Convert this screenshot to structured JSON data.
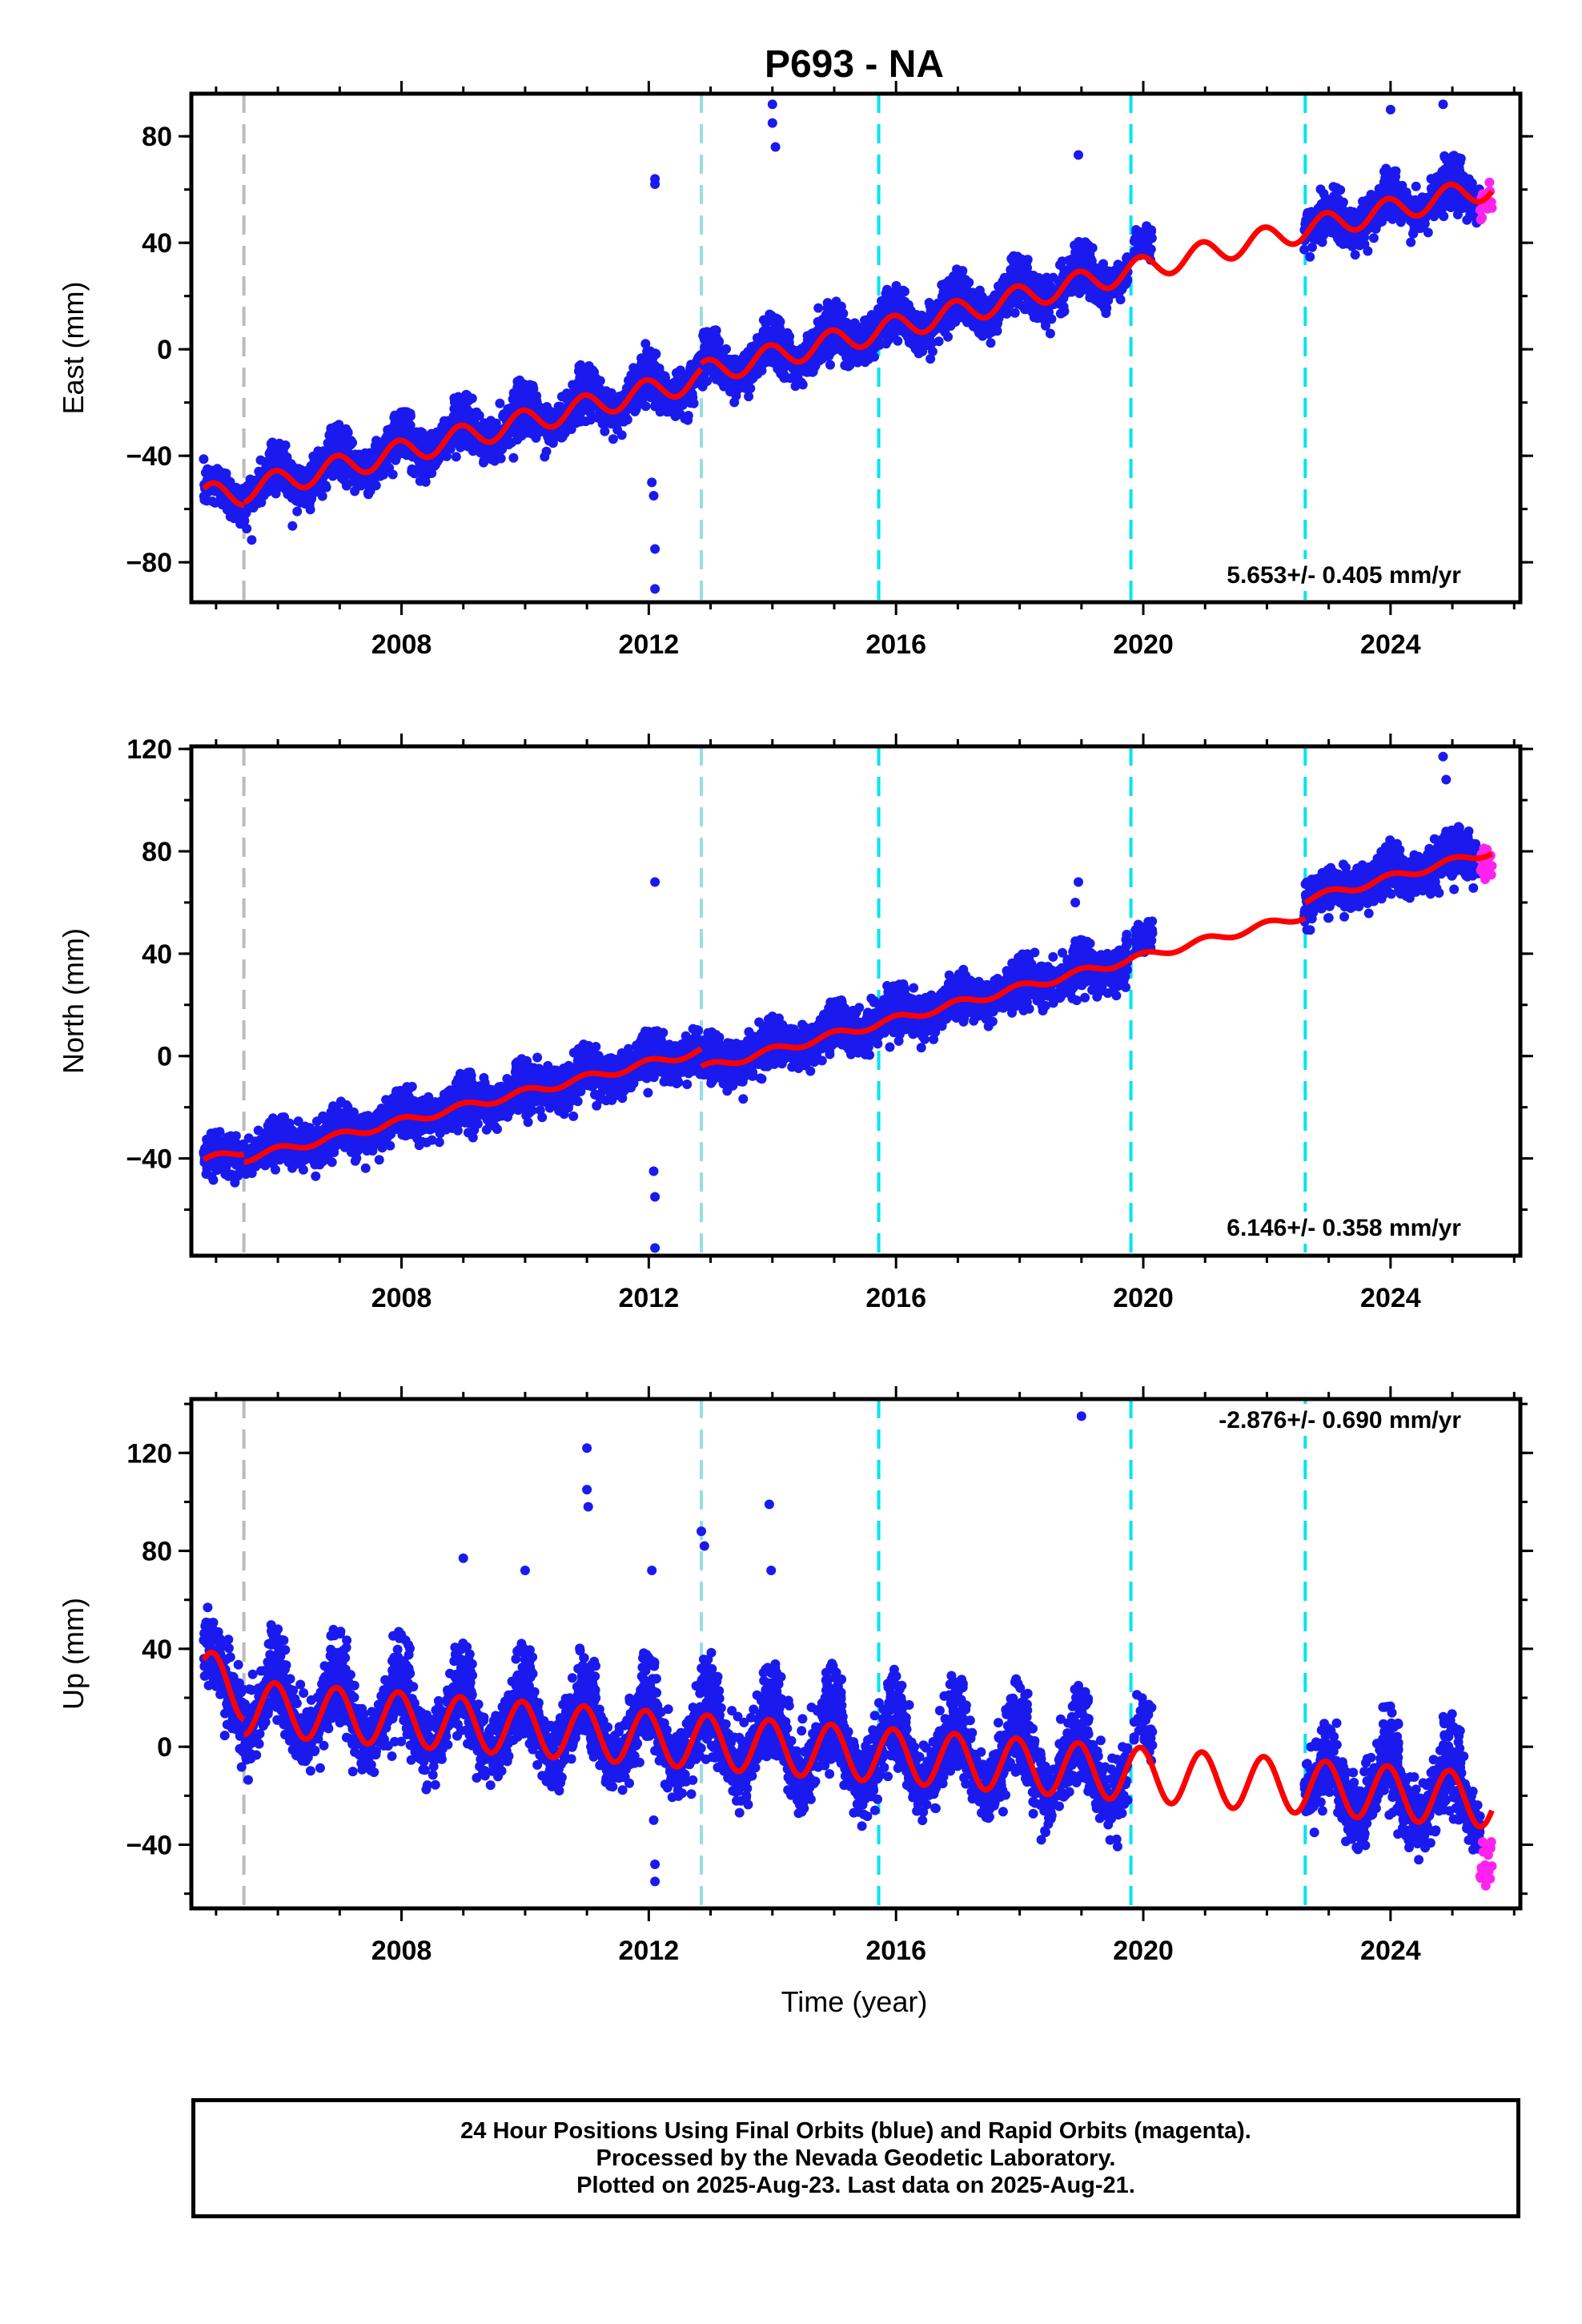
{
  "title": "P693 - NA",
  "colors": {
    "final_points": "#1a1aee",
    "rapid_points": "#ff22ee",
    "model_line": "#ff0000",
    "gray_marker": "#bbbbbb",
    "light_cyan_marker": "#99dde6",
    "cyan_marker": "#00e5ee"
  },
  "x_axis": {
    "label": "Time (year)",
    "ticks": [
      "2008",
      "2012",
      "2016",
      "2020",
      "2024"
    ],
    "range": [
      2004.6,
      2026.1
    ]
  },
  "steps": [
    {
      "year": 2005.45,
      "style": "gray"
    },
    {
      "year": 2012.85,
      "style": "light-cyan"
    },
    {
      "year": 2015.72,
      "style": "cyan"
    },
    {
      "year": 2019.8,
      "style": "cyan"
    },
    {
      "year": 2022.62,
      "style": "cyan"
    }
  ],
  "chart_data": [
    {
      "type": "scatter",
      "component": "east",
      "ylabel": "East (mm)",
      "ylim": [
        -95,
        96
      ],
      "yticks": [
        "80",
        "40",
        "0",
        "−40",
        "−80"
      ],
      "rate_label": "5.653+/- 0.405 mm/yr",
      "series": [
        {
          "name": "Final Orbits (blue)",
          "x_range": [
            2004.8,
            2025.45
          ],
          "gap": [
            2019.75,
            2022.6
          ]
        },
        {
          "name": "Rapid Orbits (magenta)",
          "x_range": [
            2025.45,
            2025.64
          ]
        }
      ],
      "model": {
        "segments": [
          {
            "x": [
              2004.8,
              2005.45
            ],
            "y": [
              -55,
              -54
            ]
          },
          {
            "x": [
              2005.45,
              2012.85
            ],
            "y": [
              -53,
              -11
            ]
          },
          {
            "x": [
              2012.85,
              2022.62
            ],
            "y": [
              -9,
              45
            ]
          },
          {
            "x": [
              2022.62,
              2025.64
            ],
            "y": [
              45,
              61
            ]
          }
        ],
        "annual_amplitude": 4.5,
        "annual_peak_fraction": 0.95
      },
      "outliers": [
        [
          2012.1,
          62
        ],
        [
          2012.1,
          64
        ],
        [
          2012.05,
          -50
        ],
        [
          2012.08,
          -55
        ],
        [
          2012.1,
          -75
        ],
        [
          2012.1,
          -90
        ],
        [
          2014.0,
          92
        ],
        [
          2014.0,
          85
        ],
        [
          2014.05,
          76
        ],
        [
          2018.95,
          73
        ],
        [
          2024.85,
          92
        ],
        [
          2024.0,
          90
        ]
      ]
    },
    {
      "type": "scatter",
      "component": "north",
      "ylabel": "North (mm)",
      "ylim": [
        -78,
        121
      ],
      "yticks": [
        "120",
        "80",
        "40",
        "0",
        "−40"
      ],
      "rate_label": "6.146+/- 0.358 mm/yr",
      "series": [
        {
          "name": "Final Orbits (blue)",
          "x_range": [
            2004.8,
            2025.45
          ],
          "gap": [
            2019.75,
            2022.6
          ]
        },
        {
          "name": "Rapid Orbits (magenta)",
          "x_range": [
            2025.45,
            2025.64
          ]
        }
      ],
      "model": {
        "segments": [
          {
            "x": [
              2004.8,
              2005.45
            ],
            "y": [
              -41,
              -37
            ]
          },
          {
            "x": [
              2005.45,
              2012.85
            ],
            "y": [
              -40,
              2
            ]
          },
          {
            "x": [
              2012.85,
              2022.62
            ],
            "y": [
              -5,
              55
            ]
          },
          {
            "x": [
              2022.62,
              2025.64
            ],
            "y": [
              61,
              80
            ]
          }
        ],
        "annual_amplitude": 1.5,
        "annual_peak_fraction": 0.0
      },
      "outliers": [
        [
          2012.1,
          68
        ],
        [
          2012.08,
          -45
        ],
        [
          2012.1,
          -55
        ],
        [
          2012.1,
          -75
        ],
        [
          2024.85,
          117
        ],
        [
          2024.9,
          108
        ],
        [
          2018.95,
          68
        ],
        [
          2018.9,
          60
        ]
      ]
    },
    {
      "type": "scatter",
      "component": "up",
      "ylabel": "Up (mm)",
      "ylim": [
        -66,
        142
      ],
      "yticks": [
        "120",
        "80",
        "40",
        "0",
        "−40"
      ],
      "rate_label": "-2.876+/- 0.690 mm/yr",
      "series": [
        {
          "name": "Final Orbits (blue)",
          "x_range": [
            2004.8,
            2025.45
          ],
          "gap": [
            2019.75,
            2022.6
          ]
        },
        {
          "name": "Rapid Orbits (magenta)",
          "x_range": [
            2025.45,
            2025.64
          ]
        }
      ],
      "model": {
        "segments": [
          {
            "x": [
              2004.8,
              2005.45
            ],
            "y": [
              29,
              22
            ]
          },
          {
            "x": [
              2005.45,
              2025.64
            ],
            "y": [
              16,
              -22
            ]
          }
        ],
        "annual_amplitude": 11,
        "annual_peak_fraction": 0.95
      },
      "outliers": [
        [
          2011.0,
          122
        ],
        [
          2011.0,
          105
        ],
        [
          2011.02,
          98
        ],
        [
          2012.85,
          88
        ],
        [
          2012.9,
          82
        ],
        [
          2013.95,
          99
        ],
        [
          2013.98,
          72
        ],
        [
          2019.0,
          135
        ],
        [
          2012.1,
          -48
        ],
        [
          2012.1,
          -55
        ],
        [
          2012.08,
          -30
        ],
        [
          2018.35,
          -38
        ],
        [
          2012.05,
          72
        ],
        [
          2009.0,
          77
        ],
        [
          2010.0,
          72
        ]
      ]
    }
  ],
  "footer": {
    "line1": "24 Hour Positions Using Final Orbits (blue) and Rapid Orbits (magenta).",
    "line2": "Processed by the Nevada Geodetic Laboratory.",
    "line3": "Plotted on 2025-Aug-23. Last data on 2025-Aug-21."
  }
}
